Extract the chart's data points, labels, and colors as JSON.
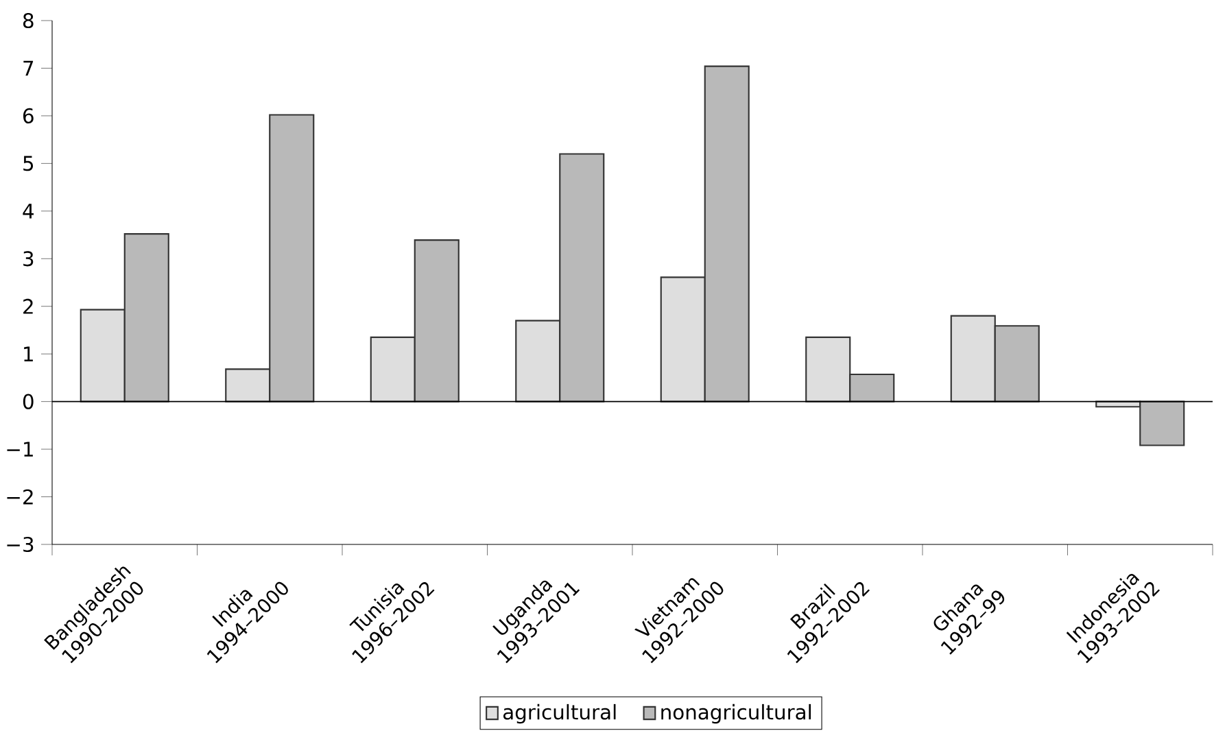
{
  "chart_data": {
    "type": "bar",
    "categories": [
      "Bangladesh 1990–2000",
      "India 1994–2000",
      "Tunisia 1996–2002",
      "Uganda 1993–2001",
      "Vietnam 1992–2000",
      "Brazil 1992–2002",
      "Ghana 1992–99",
      "Indonesia 1993–2002"
    ],
    "series": [
      {
        "name": "agricultural",
        "color": "#dedede",
        "values": [
          1.93,
          0.68,
          1.35,
          1.7,
          2.61,
          1.35,
          1.8,
          -0.11
        ]
      },
      {
        "name": "nonagricultural",
        "color": "#b9b9b9",
        "values": [
          3.52,
          6.02,
          3.39,
          5.2,
          7.04,
          0.57,
          1.59,
          -0.92
        ]
      }
    ],
    "ylim": [
      -3,
      8
    ],
    "yticks": [
      {
        "value": -3,
        "label": "−3"
      },
      {
        "value": -2,
        "label": "−2"
      },
      {
        "value": -1,
        "label": "−1"
      },
      0,
      1,
      2,
      3,
      4,
      5,
      6,
      7,
      8
    ],
    "ref_lines": [
      {
        "axis": "y",
        "value": 0,
        "color": "#000000"
      }
    ],
    "legend": "bottom",
    "grid": false
  }
}
